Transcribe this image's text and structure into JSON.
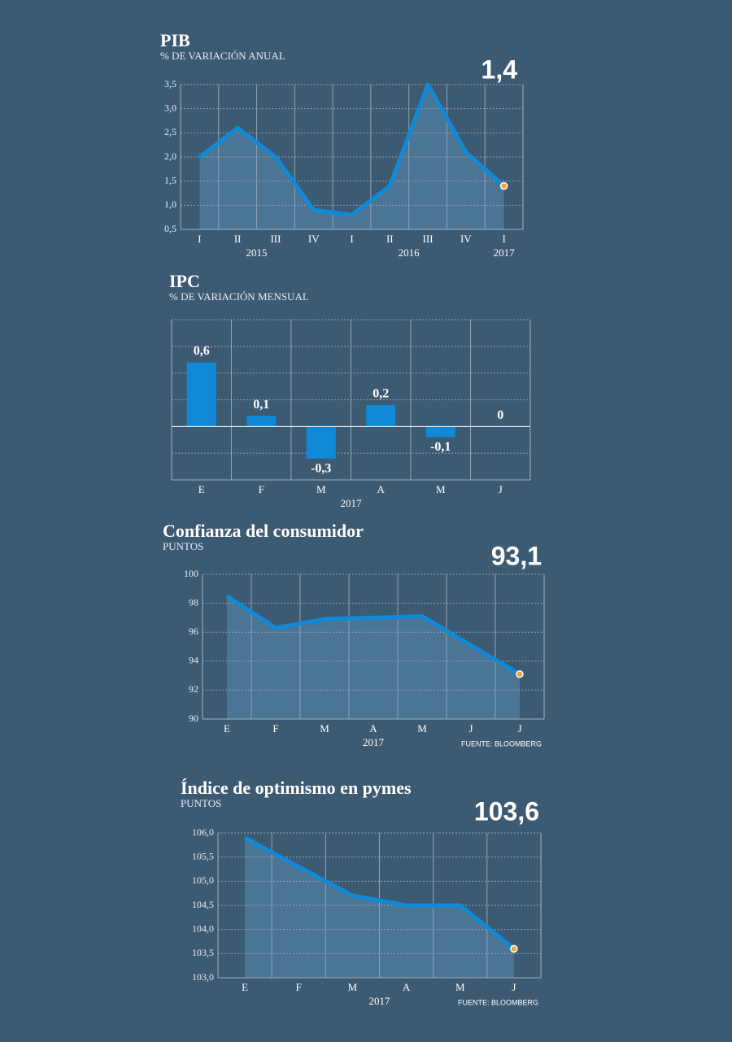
{
  "chart_data": [
    {
      "type": "line",
      "title": "PIB",
      "subtitle": "% DE VARIACIÓN ANUAL",
      "groups": [
        {
          "name": "2015",
          "categories": [
            "I",
            "II",
            "III",
            "IV"
          ]
        },
        {
          "name": "2016",
          "categories": [
            "I",
            "II",
            "III",
            "IV"
          ]
        },
        {
          "name": "2017",
          "categories": [
            "I"
          ]
        }
      ],
      "values": [
        2.0,
        2.6,
        2.0,
        0.9,
        0.8,
        1.4,
        3.5,
        2.1,
        1.4
      ],
      "value_labels": [
        null,
        null,
        null,
        null,
        null,
        null,
        null,
        null,
        "1,4"
      ],
      "ylim": [
        0.5,
        3.5
      ],
      "yticks": [
        {
          "value": 0.5,
          "label": "0,5"
        },
        {
          "value": 1.0,
          "label": "1,0"
        },
        {
          "value": 1.5,
          "label": "1,5"
        },
        {
          "value": 2.0,
          "label": "2,0"
        },
        {
          "value": 2.5,
          "label": "2,5"
        },
        {
          "value": 3.0,
          "label": "3,0"
        },
        {
          "value": 3.5,
          "label": "3,5"
        }
      ],
      "color": "#1089d6",
      "area_color": "#4b7594",
      "marker_color": "#f2a33a",
      "grid": true
    },
    {
      "type": "bar",
      "title": "IPC",
      "subtitle": "% DE VARIACIÓN MENSUAL",
      "groups": [
        {
          "name": "2017",
          "categories": [
            "E",
            "F",
            "M",
            "A",
            "M",
            "J"
          ]
        }
      ],
      "values": [
        0.6,
        0.1,
        -0.3,
        0.2,
        -0.1,
        0
      ],
      "value_labels": [
        "0,6",
        "0,1",
        "-0,3",
        "0,2",
        "-0,1",
        "0"
      ],
      "ylim": [
        -0.5,
        1.0
      ],
      "yticks": [
        -0.5,
        -0.25,
        0,
        0.25,
        0.5,
        0.75,
        1.0
      ],
      "ytick_labels": false,
      "color": "#1089d6",
      "grid": true
    },
    {
      "type": "line",
      "title": "Confianza del consumidor",
      "subtitle": "PUNTOS",
      "groups": [
        {
          "name": "2017",
          "categories": [
            "E",
            "F",
            "M",
            "A",
            "M",
            "J",
            "J"
          ]
        }
      ],
      "values": [
        98.5,
        96.3,
        96.9,
        97.0,
        97.1,
        95.1,
        93.1
      ],
      "value_labels": [
        null,
        null,
        null,
        null,
        null,
        null,
        "93,1"
      ],
      "ylim": [
        90,
        100
      ],
      "yticks": [
        90,
        92,
        94,
        96,
        98,
        100
      ],
      "source": "FUENTE: BLOOMBERG",
      "color": "#1089d6",
      "area_color": "#4b7594",
      "marker_color": "#f2a33a",
      "grid": true
    },
    {
      "type": "line",
      "title": "Índice de optimismo en pymes",
      "subtitle": "PUNTOS",
      "groups": [
        {
          "name": "2017",
          "categories": [
            "E",
            "F",
            "M",
            "A",
            "M",
            "J"
          ]
        }
      ],
      "values": [
        105.9,
        105.3,
        104.7,
        104.5,
        104.5,
        103.6
      ],
      "value_labels": [
        null,
        null,
        null,
        null,
        null,
        "103,6"
      ],
      "ylim": [
        103,
        106
      ],
      "yticks": [
        {
          "value": 103,
          "label": "103,0"
        },
        {
          "value": 103.5,
          "label": "103,5"
        },
        {
          "value": 104,
          "label": "104,0"
        },
        {
          "value": 104.5,
          "label": "104,5"
        },
        {
          "value": 105,
          "label": "105,0"
        },
        {
          "value": 105.5,
          "label": "105,5"
        },
        {
          "value": 106,
          "label": "106,0"
        }
      ],
      "source": "FUENTE: BLOOMBERG",
      "color": "#1089d6",
      "area_color": "#4b7594",
      "marker_color": "#f2a33a",
      "grid": true
    }
  ]
}
